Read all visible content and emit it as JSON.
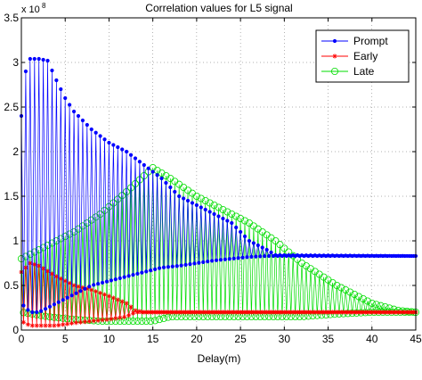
{
  "chart_data": {
    "type": "line",
    "title": "Correlation values for L5 signal",
    "xlabel": "Delay(m)",
    "ylabel": "",
    "y_multiplier": "x 10",
    "y_exponent": "8",
    "xlim": [
      0,
      45
    ],
    "ylim": [
      0,
      3.5
    ],
    "xticks": [
      "0",
      "5",
      "10",
      "15",
      "20",
      "25",
      "30",
      "35",
      "40",
      "45"
    ],
    "yticks": [
      "0",
      "0.5",
      "1",
      "1.5",
      "2",
      "2.5",
      "3",
      "3.5"
    ],
    "grid": true,
    "legend_position": "top-right",
    "series": [
      {
        "name": "Prompt",
        "color": "#0000ff",
        "marker": "dot",
        "x_start": 0,
        "x_step": 0.25,
        "envelope": [
          [
            0,
            0.3,
            2.4
          ],
          [
            0.5,
            0.25,
            2.9
          ],
          [
            1.0,
            0.2,
            3.04
          ],
          [
            2.0,
            0.2,
            3.04
          ],
          [
            3.0,
            0.25,
            3.02
          ],
          [
            4.0,
            0.3,
            2.8
          ],
          [
            5.0,
            0.35,
            2.6
          ],
          [
            6.0,
            0.4,
            2.45
          ],
          [
            7.0,
            0.45,
            2.35
          ],
          [
            8.0,
            0.5,
            2.25
          ],
          [
            10.0,
            0.55,
            2.1
          ],
          [
            12.0,
            0.6,
            2.0
          ],
          [
            14.0,
            0.65,
            1.85
          ],
          [
            16.0,
            0.7,
            1.7
          ],
          [
            18.0,
            0.72,
            1.5
          ],
          [
            20.0,
            0.75,
            1.4
          ],
          [
            22.0,
            0.78,
            1.3
          ],
          [
            24.0,
            0.8,
            1.2
          ],
          [
            26.0,
            0.82,
            1.0
          ],
          [
            28.0,
            0.83,
            0.9
          ],
          [
            29.0,
            0.83,
            0.84
          ],
          [
            45.0,
            0.83,
            0.83
          ]
        ]
      },
      {
        "name": "Early",
        "color": "#ff0000",
        "marker": "star",
        "x_start": 0,
        "x_step": 0.25,
        "envelope": [
          [
            0,
            0.1,
            0.65
          ],
          [
            1.0,
            0.05,
            0.75
          ],
          [
            2.0,
            0.05,
            0.72
          ],
          [
            4.0,
            0.05,
            0.6
          ],
          [
            6.0,
            0.08,
            0.5
          ],
          [
            8.0,
            0.1,
            0.45
          ],
          [
            10.0,
            0.12,
            0.38
          ],
          [
            12.0,
            0.15,
            0.3
          ],
          [
            13.0,
            0.2,
            0.22
          ],
          [
            14.0,
            0.2,
            0.2
          ],
          [
            45.0,
            0.2,
            0.2
          ]
        ]
      },
      {
        "name": "Late",
        "color": "#00dd00",
        "marker": "circle",
        "x_start": 0,
        "x_step": 0.25,
        "envelope": [
          [
            0,
            0.2,
            0.8
          ],
          [
            3.0,
            0.15,
            0.95
          ],
          [
            6.0,
            0.12,
            1.1
          ],
          [
            9.0,
            0.1,
            1.3
          ],
          [
            12.0,
            0.1,
            1.55
          ],
          [
            15.0,
            0.1,
            1.82
          ],
          [
            17.0,
            0.15,
            1.7
          ],
          [
            20.0,
            0.15,
            1.5
          ],
          [
            23.0,
            0.15,
            1.35
          ],
          [
            26.0,
            0.15,
            1.2
          ],
          [
            29.0,
            0.15,
            1.0
          ],
          [
            32.0,
            0.15,
            0.75
          ],
          [
            36.0,
            0.18,
            0.5
          ],
          [
            40.0,
            0.2,
            0.3
          ],
          [
            43.0,
            0.2,
            0.22
          ],
          [
            45.0,
            0.2,
            0.2
          ]
        ]
      }
    ]
  }
}
